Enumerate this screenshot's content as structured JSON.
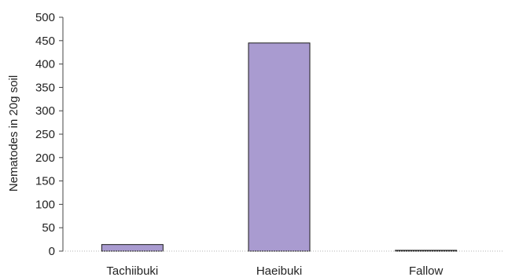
{
  "chart_data": {
    "type": "bar",
    "title": "",
    "xlabel": "",
    "ylabel": "Nematodes in 20g soil",
    "categories": [
      "Tachiibuki",
      "Haeibuki",
      "Fallow"
    ],
    "values": [
      14,
      445,
      1
    ],
    "ylim": [
      0,
      500
    ],
    "yticks": [
      "0",
      "50",
      "100",
      "150",
      "200",
      "250",
      "300",
      "350",
      "400",
      "450",
      "500"
    ],
    "grid": false,
    "legend": "none",
    "colors": {
      "bar_fill": "#a99bd0",
      "bar_stroke": "#1a1a1a",
      "axis": "#444444",
      "baseline": "#b0b0b0"
    }
  }
}
